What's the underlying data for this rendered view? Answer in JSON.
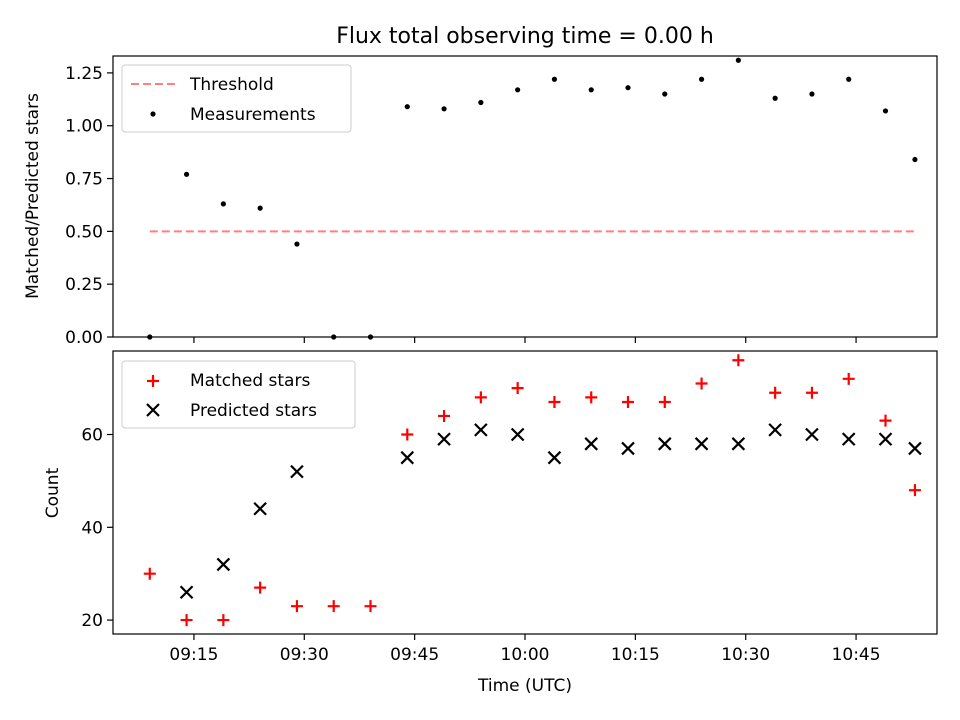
{
  "chart_data": [
    {
      "type": "scatter",
      "title": "Flux total observing time = 0.00 h",
      "xlabel": "",
      "ylabel": "Matched/Predicted stars",
      "xlim": [
        "09:04",
        "10:56"
      ],
      "ylim": [
        0,
        1.33
      ],
      "yticks": [
        0.0,
        0.25,
        0.5,
        0.75,
        1.0,
        1.25
      ],
      "ytick_labels": [
        "0.00",
        "0.25",
        "0.50",
        "0.75",
        "1.00",
        "1.25"
      ],
      "legend_position": "top-left",
      "threshold": {
        "name": "Threshold",
        "value": 0.5,
        "x_start": "09:09",
        "x_end": "10:53",
        "color": "#ff7f7f",
        "style": "dashed"
      },
      "series": [
        {
          "name": "Measurements",
          "marker": "dot",
          "color": "#000000",
          "x": [
            "09:09",
            "09:14",
            "09:19",
            "09:24",
            "09:29",
            "09:34",
            "09:39",
            "09:44",
            "09:49",
            "09:54",
            "09:59",
            "10:04",
            "10:09",
            "10:14",
            "10:19",
            "10:24",
            "10:29",
            "10:34",
            "10:39",
            "10:44",
            "10:49",
            "10:53"
          ],
          "values": [
            0.0,
            0.77,
            0.63,
            0.61,
            0.44,
            0.0,
            0.0,
            1.09,
            1.08,
            1.11,
            1.17,
            1.22,
            1.17,
            1.18,
            1.15,
            1.22,
            1.31,
            1.13,
            1.15,
            1.22,
            1.07,
            0.84
          ]
        }
      ]
    },
    {
      "type": "scatter",
      "title": "",
      "xlabel": "Time (UTC)",
      "ylabel": "Count",
      "xlim": [
        "09:04",
        "10:56"
      ],
      "ylim": [
        17,
        78
      ],
      "yticks": [
        20,
        40,
        60
      ],
      "ytick_labels": [
        "20",
        "40",
        "60"
      ],
      "xticks": [
        "09:15",
        "09:30",
        "09:45",
        "10:00",
        "10:15",
        "10:30",
        "10:45"
      ],
      "legend_position": "top-left",
      "series": [
        {
          "name": "Matched stars",
          "marker": "plus",
          "color": "#ff0000",
          "x": [
            "09:09",
            "09:14",
            "09:19",
            "09:24",
            "09:29",
            "09:34",
            "09:39",
            "09:44",
            "09:49",
            "09:54",
            "09:59",
            "10:04",
            "10:09",
            "10:14",
            "10:19",
            "10:24",
            "10:29",
            "10:34",
            "10:39",
            "10:44",
            "10:49",
            "10:53"
          ],
          "values": [
            30,
            20,
            20,
            27,
            23,
            23,
            23,
            60,
            64,
            68,
            70,
            67,
            68,
            67,
            67,
            71,
            76,
            69,
            69,
            72,
            63,
            48
          ]
        },
        {
          "name": "Predicted stars",
          "marker": "x",
          "color": "#000000",
          "x": [
            "09:14",
            "09:19",
            "09:24",
            "09:29",
            "09:44",
            "09:49",
            "09:54",
            "09:59",
            "10:04",
            "10:09",
            "10:14",
            "10:19",
            "10:24",
            "10:29",
            "10:34",
            "10:39",
            "10:44",
            "10:49",
            "10:53"
          ],
          "values": [
            26,
            32,
            44,
            52,
            55,
            59,
            61,
            60,
            55,
            58,
            57,
            58,
            58,
            58,
            61,
            60,
            59,
            59,
            57
          ]
        }
      ]
    }
  ]
}
